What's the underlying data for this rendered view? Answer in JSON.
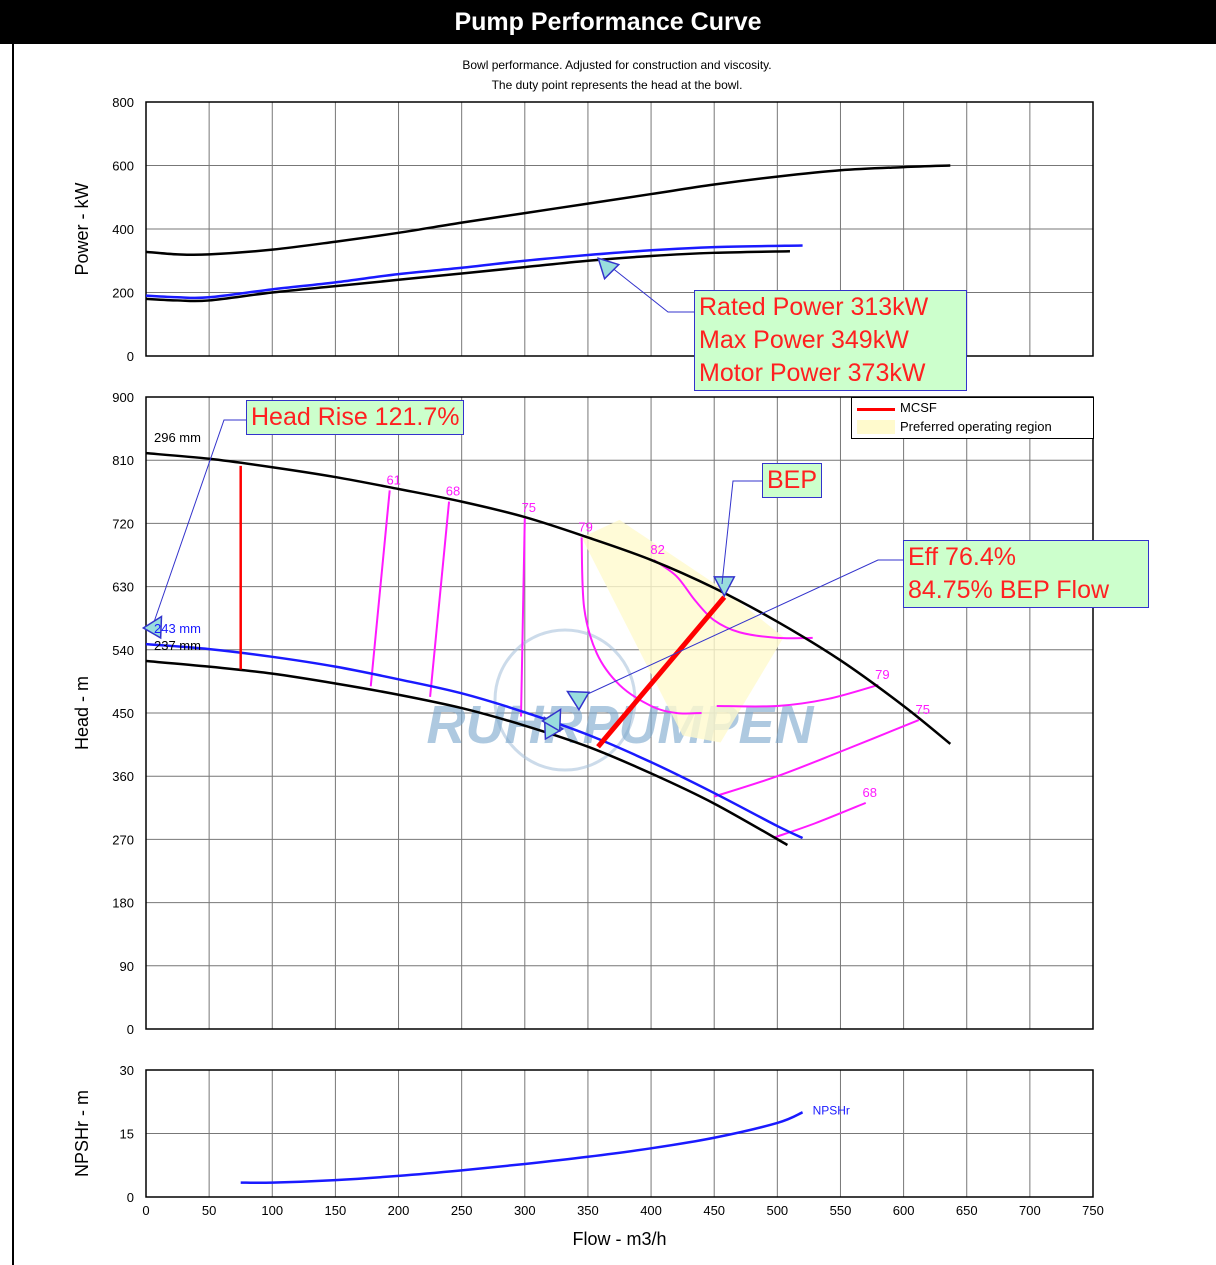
{
  "title": "Pump Performance Curve",
  "subtitle_lines": [
    "Bowl performance. Adjusted for construction and viscosity.",
    "The duty point represents the head at the bowl."
  ],
  "watermark": "RUHRPUMPEN",
  "colors": {
    "black": "#000000",
    "blue": "#1a1aff",
    "magenta": "#ff1aff",
    "red": "#ff0000",
    "por_fill": "#fffacd",
    "annotation_fill": "#ccffcc",
    "annotation_text": "#ff2020",
    "pointer": "#3333cc",
    "marker_fill": "#99dddd"
  },
  "annotations": {
    "power": [
      "Rated Power 313kW",
      "Max Power 349kW",
      "Motor Power 373kW"
    ],
    "head_rise": "Head Rise 121.7%",
    "bep": "BEP",
    "eff": [
      "Eff 76.4%",
      "84.75% BEP Flow"
    ]
  },
  "legend": {
    "mcsf": "MCSF",
    "por": "Preferred operating region"
  },
  "chart_data": {
    "type": "line",
    "x_axis": {
      "label": "Flow - m3/h",
      "range": [
        0,
        750
      ],
      "ticks": [
        0,
        50,
        100,
        150,
        200,
        250,
        300,
        350,
        400,
        450,
        500,
        550,
        600,
        650,
        700,
        750
      ],
      "tick_labels": [
        "0",
        "50",
        "100",
        "150",
        "200",
        "250",
        "300",
        "350",
        "400",
        "450",
        "500",
        "550",
        "600",
        "650",
        "700",
        "750"
      ]
    },
    "grid": true,
    "panels": {
      "power": {
        "ylabel": "Power - kW",
        "ylim": [
          0,
          800
        ],
        "yticks": [
          0,
          200,
          400,
          600,
          800
        ],
        "ytick_labels": [
          "0",
          "200",
          "400",
          "600",
          "800"
        ],
        "series": [
          {
            "color": "black",
            "x": [
              0,
              25,
              50,
              100,
              150,
              200,
              250,
              300,
              350,
              400,
              450,
              500,
              550,
              600,
              637
            ],
            "y": [
              328,
              320,
              320,
              335,
              360,
              388,
              420,
              450,
              480,
              510,
              540,
              565,
              585,
              595,
              600
            ]
          },
          {
            "color": "blue",
            "x": [
              0,
              25,
              50,
              100,
              150,
              200,
              250,
              300,
              350,
              400,
              450,
              520
            ],
            "y": [
              190,
              185,
              185,
              210,
              232,
              258,
              278,
              300,
              318,
              333,
              343,
              348
            ]
          },
          {
            "color": "black",
            "x": [
              0,
              25,
              50,
              100,
              150,
              200,
              250,
              300,
              350,
              400,
              450,
              510
            ],
            "y": [
              180,
              175,
              175,
              200,
              220,
              240,
              260,
              280,
              300,
              315,
              325,
              330
            ]
          }
        ]
      },
      "head": {
        "ylabel": "Head - m",
        "ylim": [
          0,
          900
        ],
        "yticks": [
          0,
          90,
          180,
          270,
          360,
          450,
          540,
          630,
          720,
          810,
          900
        ],
        "ytick_labels": [
          "0",
          "90",
          "180",
          "270",
          "360",
          "450",
          "540",
          "630",
          "720",
          "810",
          "900"
        ],
        "diameters": [
          {
            "label": "296 mm",
            "color": "black",
            "x": [
              0,
              50,
              100,
              150,
              200,
              250,
              300,
              350,
              400,
              450,
              500,
              550,
              600,
              637
            ],
            "y": [
              820,
              812,
              800,
              786,
              769,
              751,
              729,
              700,
              668,
              628,
              580,
              525,
              460,
              406
            ]
          },
          {
            "label": "243 mm",
            "color": "blue",
            "x": [
              0,
              50,
              100,
              150,
              200,
              250,
              300,
              350,
              400,
              450,
              500,
              520
            ],
            "y": [
              548,
              541,
              530,
              516,
              498,
              478,
              451,
              419,
              380,
              336,
              289,
              272
            ]
          },
          {
            "label": "237 mm",
            "color": "black",
            "x": [
              0,
              50,
              100,
              150,
              200,
              250,
              300,
              350,
              400,
              450,
              508
            ],
            "y": [
              524,
              516,
              506,
              492,
              476,
              457,
              432,
              402,
              364,
              321,
              262
            ]
          }
        ],
        "efficiency_contours": [
          {
            "label": "61",
            "x": [
              178,
              193
            ],
            "y": [
              488,
              767
            ]
          },
          {
            "label": "68",
            "x": [
              225,
              240
            ],
            "y": [
              473,
              751
            ]
          },
          {
            "label": "75",
            "x": [
              297,
              300
            ],
            "y": [
              445,
              728
            ]
          },
          {
            "label": "79",
            "x": [
              345,
              347,
              357,
              375,
              400,
              420,
              440
            ],
            "y": [
              700,
              600,
              535,
              490,
              460,
              450,
              450
            ]
          },
          {
            "label": "82",
            "x": [
              402,
              420,
              435,
              450,
              470,
              500,
              528
            ],
            "y": [
              668,
              645,
              610,
              582,
              565,
              557,
              557
            ]
          },
          {
            "label": "79",
            "x": [
              452,
              500,
              540,
              580
            ],
            "y": [
              460,
              460,
              470,
              490
            ]
          },
          {
            "label": "75",
            "x": [
              450,
              500,
              550,
              612
            ],
            "y": [
              331,
              360,
              395,
              440
            ]
          },
          {
            "label": "68",
            "x": [
              498,
              530,
              570
            ],
            "y": [
              273,
              293,
              322
            ]
          }
        ],
        "mcsf": [
          {
            "x": [
              75,
              75
            ],
            "y": [
              512,
              802
            ]
          },
          {
            "x": [
              358,
              458
            ],
            "y": [
              402,
              615
            ]
          }
        ],
        "bep": {
          "x": 458,
          "y": 621
        },
        "duty_point": {
          "x": 320,
          "y": 430
        },
        "preferred_operating_region": {
          "x": [
            345,
            375,
            458,
            505,
            455,
            425
          ],
          "y": [
            700,
            725,
            625,
            558,
            408,
            418
          ]
        }
      },
      "npsh": {
        "ylabel": "NPSHr - m",
        "ylim": [
          0,
          30
        ],
        "yticks": [
          0,
          15,
          30
        ],
        "ytick_labels": [
          "0",
          "15",
          "30"
        ],
        "series": [
          {
            "name": "NPSHr",
            "color": "blue",
            "x": [
              75,
              100,
              150,
              200,
              250,
              300,
              350,
              400,
              450,
              500,
              520
            ],
            "y": [
              3.4,
              3.4,
              4,
              5,
              6.3,
              7.8,
              9.5,
              11.5,
              14,
              17.5,
              20
            ]
          }
        ]
      }
    }
  }
}
